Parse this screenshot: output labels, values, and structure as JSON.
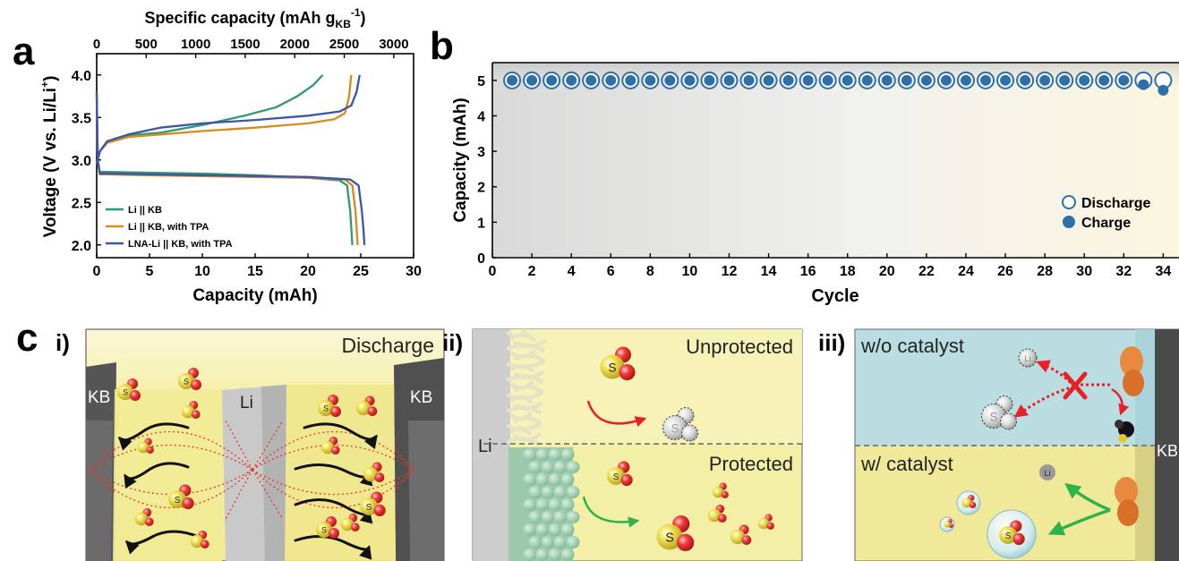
{
  "figure": {
    "panel_a_letter": "a",
    "panel_b_letter": "b",
    "panel_c_letter": "c"
  },
  "chart_data": [
    {
      "type": "line",
      "panel": "a",
      "xlabel": "Capacity (mAh)",
      "ylabel_main": "Voltage (V vs. Li/Li",
      "ylabel_sup": "+",
      "ylabel_end": ")",
      "top_xlabel_main": "Specific capacity (mAh g",
      "top_xlabel_sub": "KB",
      "top_xlabel_sup": "-1",
      "top_xlabel_end": ")",
      "xlim": [
        0,
        30
      ],
      "ylim": [
        1.85,
        4.25
      ],
      "xticks": [
        "0",
        "5",
        "10",
        "15",
        "20",
        "25",
        "30"
      ],
      "yticks": [
        "2.0",
        "2.5",
        "3.0",
        "3.5",
        "4.0"
      ],
      "top_xticks": [
        "0",
        "500",
        "1000",
        "1500",
        "2000",
        "2500",
        "3000"
      ],
      "top_xlim": [
        0,
        3200
      ],
      "legend_placement": "bottom-left",
      "series": [
        {
          "name": "Li || KB",
          "color": "#2e9a6e",
          "discharge": [
            [
              0,
              3.8
            ],
            [
              0.1,
              3.0
            ],
            [
              0.3,
              2.86
            ],
            [
              1,
              2.86
            ],
            [
              5,
              2.85
            ],
            [
              10,
              2.84
            ],
            [
              15,
              2.82
            ],
            [
              20,
              2.79
            ],
            [
              23,
              2.76
            ],
            [
              23.7,
              2.7
            ],
            [
              24,
              2.4
            ],
            [
              24.1,
              2.2
            ],
            [
              24.2,
              2.0
            ]
          ],
          "charge": [
            [
              0,
              2.95
            ],
            [
              0.3,
              3.1
            ],
            [
              1,
              3.22
            ],
            [
              3,
              3.29
            ],
            [
              6,
              3.32
            ],
            [
              10,
              3.41
            ],
            [
              14,
              3.52
            ],
            [
              17,
              3.62
            ],
            [
              19,
              3.75
            ],
            [
              20.5,
              3.88
            ],
            [
              21.4,
              4.0
            ]
          ]
        },
        {
          "name": "Li || KB, with TPA",
          "color": "#d98a1f",
          "discharge": [
            [
              0,
              3.8
            ],
            [
              0.1,
              3.0
            ],
            [
              0.3,
              2.83
            ],
            [
              1,
              2.83
            ],
            [
              5,
              2.82
            ],
            [
              10,
              2.81
            ],
            [
              15,
              2.8
            ],
            [
              20,
              2.79
            ],
            [
              23.5,
              2.77
            ],
            [
              24.2,
              2.7
            ],
            [
              24.5,
              2.4
            ],
            [
              24.6,
              2.2
            ],
            [
              24.7,
              2.0
            ]
          ],
          "charge": [
            [
              0,
              2.95
            ],
            [
              0.3,
              3.1
            ],
            [
              1,
              3.2
            ],
            [
              3,
              3.27
            ],
            [
              6,
              3.3
            ],
            [
              10,
              3.34
            ],
            [
              15,
              3.38
            ],
            [
              20,
              3.43
            ],
            [
              22.5,
              3.48
            ],
            [
              23.5,
              3.55
            ],
            [
              23.9,
              3.75
            ],
            [
              24.1,
              4.0
            ]
          ]
        },
        {
          "name": "LNA-Li || KB, with TPA",
          "color": "#3c55a5",
          "discharge": [
            [
              0,
              3.8
            ],
            [
              0.1,
              3.0
            ],
            [
              0.3,
              2.84
            ],
            [
              1,
              2.84
            ],
            [
              5,
              2.83
            ],
            [
              10,
              2.82
            ],
            [
              15,
              2.81
            ],
            [
              20,
              2.8
            ],
            [
              24,
              2.77
            ],
            [
              24.8,
              2.7
            ],
            [
              25.1,
              2.4
            ],
            [
              25.25,
              2.2
            ],
            [
              25.35,
              2.0
            ]
          ],
          "charge": [
            [
              0,
              2.95
            ],
            [
              0.3,
              3.1
            ],
            [
              1,
              3.22
            ],
            [
              3,
              3.3
            ],
            [
              6,
              3.38
            ],
            [
              10,
              3.43
            ],
            [
              15,
              3.47
            ],
            [
              20,
              3.52
            ],
            [
              23,
              3.57
            ],
            [
              24.1,
              3.64
            ],
            [
              24.6,
              3.8
            ],
            [
              24.9,
              4.0
            ]
          ]
        }
      ],
      "legend": [
        "Li || KB",
        "Li || KB, with TPA",
        "LNA-Li || KB, with TPA"
      ]
    },
    {
      "type": "scatter",
      "panel": "b",
      "xlabel": "Cycle",
      "ylabel": "Capacity (mAh)",
      "xlim": [
        0,
        34.8
      ],
      "ylim": [
        0,
        5.5
      ],
      "xticks": [
        "0",
        "2",
        "4",
        "6",
        "8",
        "10",
        "12",
        "14",
        "16",
        "18",
        "20",
        "22",
        "24",
        "26",
        "28",
        "30",
        "32",
        "34"
      ],
      "yticks": [
        "0",
        "1",
        "2",
        "3",
        "4",
        "5"
      ],
      "legend_placement": "right",
      "marker_color": "#2f6fa8",
      "series": [
        {
          "name": "Discharge",
          "x": [
            1,
            2,
            3,
            4,
            5,
            6,
            7,
            8,
            9,
            10,
            11,
            12,
            13,
            14,
            15,
            16,
            17,
            18,
            19,
            20,
            21,
            22,
            23,
            24,
            25,
            26,
            27,
            28,
            29,
            30,
            31,
            32,
            33,
            34,
            35
          ],
          "y": [
            5,
            5,
            5,
            5,
            5,
            5,
            5,
            5,
            5,
            5,
            5,
            5,
            5,
            5,
            5,
            5,
            5,
            5,
            5,
            5,
            5,
            5,
            5,
            5,
            5,
            5,
            5,
            5,
            5,
            5,
            5,
            5,
            5,
            5,
            4.85
          ]
        },
        {
          "name": "Charge",
          "x": [
            1,
            2,
            3,
            4,
            5,
            6,
            7,
            8,
            9,
            10,
            11,
            12,
            13,
            14,
            15,
            16,
            17,
            18,
            19,
            20,
            21,
            22,
            23,
            24,
            25,
            26,
            27,
            28,
            29,
            30,
            31,
            32,
            33,
            34,
            35
          ],
          "y": [
            5,
            5,
            5,
            5,
            5,
            5,
            5,
            5,
            5,
            5,
            5,
            5,
            5,
            5,
            5,
            5,
            5,
            5,
            5,
            5,
            5,
            5,
            5,
            5,
            5,
            5,
            5,
            5,
            5,
            5,
            5,
            5,
            4.88,
            4.72,
            4.85
          ]
        }
      ]
    }
  ],
  "panel_c": {
    "i": {
      "label": "i)",
      "title": "Discharge",
      "kb_left": "KB",
      "kb_right": "KB",
      "li": "Li"
    },
    "ii": {
      "label": "ii)",
      "unprotected": "Unprotected",
      "protected": "Protected",
      "li": "Li"
    },
    "iii": {
      "label": "iii)",
      "without": "w/o catalyst",
      "with": "w/ catalyst",
      "kb": "KB"
    },
    "molecule": {
      "s": "S",
      "o": "O",
      "li": "Li"
    }
  }
}
